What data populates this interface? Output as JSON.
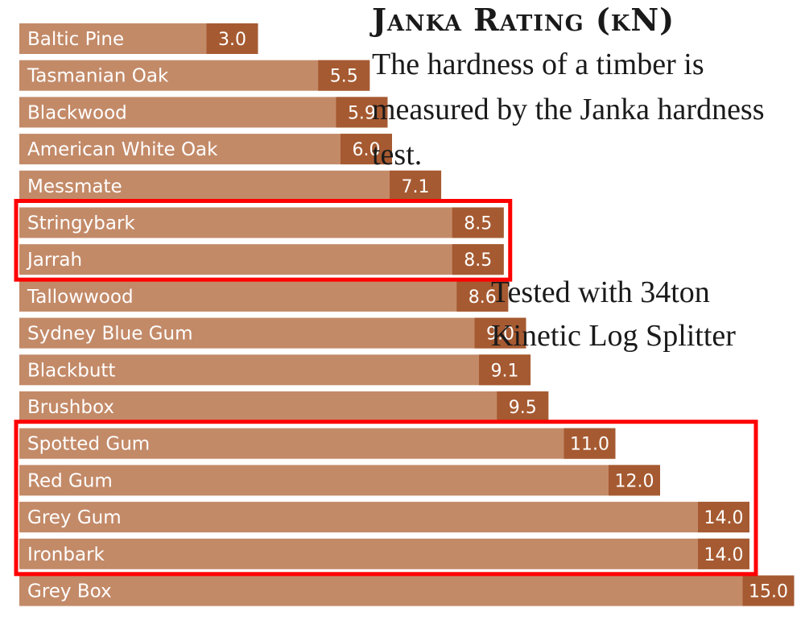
{
  "chart_data": {
    "type": "bar",
    "orientation": "horizontal",
    "title": "Janka Rating (kN)",
    "subtitle": "The hardness of a timber is measured by the Janka hardness test.",
    "categories": [
      "Baltic Pine",
      "Tasmanian Oak",
      "Blackwood",
      "American White Oak",
      "Messmate",
      "Stringybark",
      "Jarrah",
      "Tallowwood",
      "Sydney Blue Gum",
      "Blackbutt",
      "Brushbox",
      "Spotted Gum",
      "Red Gum",
      "Grey Gum",
      "Ironbark",
      "Grey Box"
    ],
    "values": [
      3.0,
      5.5,
      5.9,
      6.0,
      7.1,
      8.5,
      8.5,
      8.6,
      9.0,
      9.1,
      9.5,
      11.0,
      12.0,
      14.0,
      14.0,
      15.0
    ],
    "value_labels": [
      "3.0",
      "5.5",
      "5.9",
      "6.0",
      "7.1",
      "8.5",
      "8.5",
      "8.6",
      "9.0",
      "9.1",
      "9.5",
      "11.0",
      "12.0",
      "14.0",
      "14.0",
      "15.0"
    ],
    "xlim": [
      0,
      15
    ],
    "grid": false,
    "legend": "none",
    "annotation": "Tested with 34ton Kinetic Log Splitter",
    "highlight_groups": [
      {
        "categories": [
          "Stringybark",
          "Jarrah"
        ]
      },
      {
        "categories": [
          "Spotted Gum",
          "Red Gum",
          "Grey Gum",
          "Ironbark"
        ]
      }
    ],
    "colors": {
      "bar": "#c38a68",
      "value_box": "#a65a31",
      "highlight_border": "#ff0000",
      "text": "#ffffff"
    }
  }
}
